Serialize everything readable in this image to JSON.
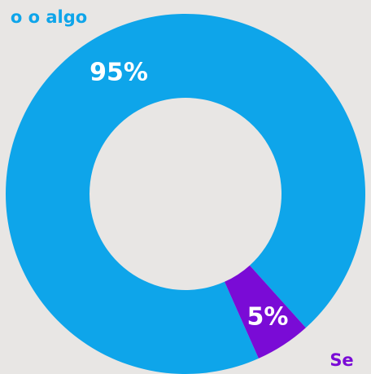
{
  "chart_data": {
    "type": "donut",
    "categories": [
      "o o algo",
      "Se"
    ],
    "values": [
      95,
      5
    ],
    "value_labels": [
      "95%",
      "5%"
    ],
    "colors": [
      "#0ea5ea",
      "#7a0bd6"
    ]
  }
}
